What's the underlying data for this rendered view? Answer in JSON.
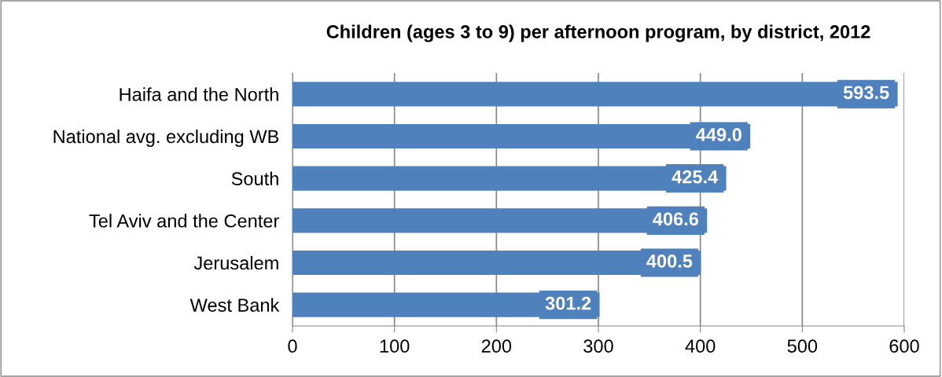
{
  "chart_data": {
    "type": "bar",
    "orientation": "horizontal",
    "title": "Children (ages 3 to 9) per afternoon program, by district, 2012",
    "categories": [
      "Haifa and the North",
      "National avg. excluding WB",
      "South",
      "Tel Aviv and the Center",
      "Jerusalem",
      "West Bank"
    ],
    "values": [
      593.5,
      449.0,
      425.4,
      406.6,
      400.5,
      301.2
    ],
    "value_labels": [
      "593.5",
      "449.0",
      "425.4",
      "406.6",
      "400.5",
      "301.2"
    ],
    "color": "#4f81bd",
    "xlim": [
      0,
      600
    ],
    "xticks": [
      0,
      100,
      200,
      300,
      400,
      500,
      600
    ],
    "grid": "x"
  }
}
